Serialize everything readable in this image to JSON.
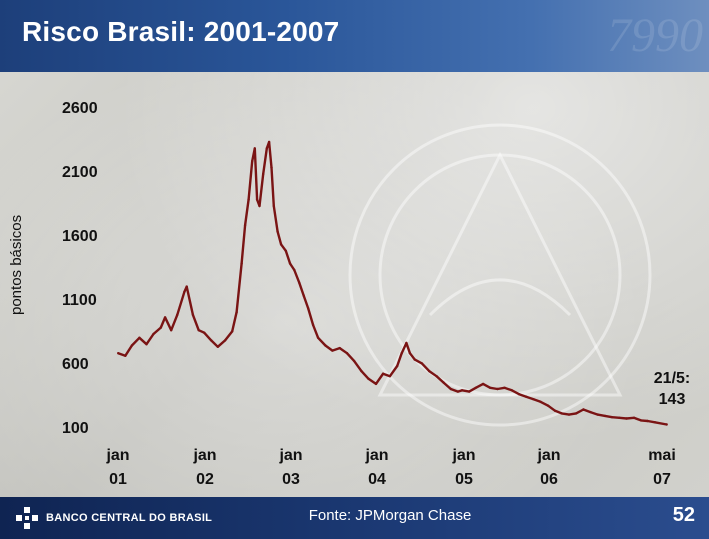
{
  "title": "Risco Brasil: 2001-2007",
  "footer": {
    "brand": "BANCO CENTRAL DO BRASIL",
    "source": "Fonte: JPMorgan Chase",
    "page": "52"
  },
  "colors": {
    "series": "#7a1414",
    "header": "#2a5699",
    "footer": "#1c3a75"
  },
  "chart_data": {
    "type": "line",
    "title": "Risco Brasil: 2001-2007",
    "ylabel": "pontos básicos",
    "yticks": [
      "2600",
      "2100",
      "1600",
      "1100",
      "600",
      "100"
    ],
    "ylim": [
      100,
      2600
    ],
    "xtick_labels": [
      [
        "jan",
        "01"
      ],
      [
        "jan",
        "02"
      ],
      [
        "jan",
        "03"
      ],
      [
        "jan",
        "04"
      ],
      [
        "jan",
        "05"
      ],
      [
        "jan",
        "06"
      ],
      [
        "mai",
        "07"
      ]
    ],
    "xtick_dates": [
      "2001-01",
      "2002-01",
      "2003-01",
      "2004-01",
      "2005-01",
      "2006-01",
      "2007-05"
    ],
    "annotation": [
      "21/5:",
      "143"
    ],
    "grid": false,
    "legend": "none",
    "series": [
      {
        "points": [
          [
            "2001-01-02",
            700
          ],
          [
            "2001-02-01",
            680
          ],
          [
            "2001-03-01",
            760
          ],
          [
            "2001-04-02",
            820
          ],
          [
            "2001-05-02",
            770
          ],
          [
            "2001-06-01",
            850
          ],
          [
            "2001-07-02",
            900
          ],
          [
            "2001-07-20",
            980
          ],
          [
            "2001-08-15",
            880
          ],
          [
            "2001-09-10",
            1000
          ],
          [
            "2001-10-10",
            1180
          ],
          [
            "2001-10-20",
            1220
          ],
          [
            "2001-11-15",
            1000
          ],
          [
            "2001-12-10",
            880
          ],
          [
            "2002-01-02",
            860
          ],
          [
            "2002-02-01",
            800
          ],
          [
            "2002-03-01",
            750
          ],
          [
            "2002-04-01",
            800
          ],
          [
            "2002-05-01",
            870
          ],
          [
            "2002-05-20",
            1020
          ],
          [
            "2002-06-10",
            1400
          ],
          [
            "2002-06-25",
            1700
          ],
          [
            "2002-07-10",
            1900
          ],
          [
            "2002-07-25",
            2200
          ],
          [
            "2002-08-05",
            2300
          ],
          [
            "2002-08-15",
            1900
          ],
          [
            "2002-08-25",
            1850
          ],
          [
            "2002-09-10",
            2100
          ],
          [
            "2002-09-25",
            2300
          ],
          [
            "2002-10-05",
            2350
          ],
          [
            "2002-10-15",
            2150
          ],
          [
            "2002-10-25",
            1850
          ],
          [
            "2002-11-10",
            1650
          ],
          [
            "2002-11-25",
            1550
          ],
          [
            "2002-12-15",
            1500
          ],
          [
            "2003-01-02",
            1400
          ],
          [
            "2003-01-20",
            1350
          ],
          [
            "2003-02-10",
            1250
          ],
          [
            "2003-03-01",
            1150
          ],
          [
            "2003-03-20",
            1050
          ],
          [
            "2003-04-10",
            920
          ],
          [
            "2003-05-01",
            820
          ],
          [
            "2003-06-01",
            760
          ],
          [
            "2003-07-01",
            720
          ],
          [
            "2003-08-01",
            740
          ],
          [
            "2003-09-01",
            700
          ],
          [
            "2003-10-01",
            640
          ],
          [
            "2003-11-01",
            560
          ],
          [
            "2003-12-01",
            500
          ],
          [
            "2004-01-02",
            460
          ],
          [
            "2004-02-01",
            540
          ],
          [
            "2004-03-01",
            520
          ],
          [
            "2004-04-01",
            600
          ],
          [
            "2004-04-20",
            700
          ],
          [
            "2004-05-10",
            780
          ],
          [
            "2004-05-25",
            700
          ],
          [
            "2004-06-15",
            650
          ],
          [
            "2004-07-15",
            620
          ],
          [
            "2004-08-15",
            560
          ],
          [
            "2004-09-15",
            520
          ],
          [
            "2004-10-15",
            470
          ],
          [
            "2004-11-15",
            420
          ],
          [
            "2004-12-15",
            400
          ],
          [
            "2005-01-02",
            410
          ],
          [
            "2005-02-01",
            400
          ],
          [
            "2005-03-01",
            430
          ],
          [
            "2005-04-01",
            460
          ],
          [
            "2005-05-01",
            430
          ],
          [
            "2005-06-01",
            420
          ],
          [
            "2005-07-01",
            430
          ],
          [
            "2005-08-01",
            410
          ],
          [
            "2005-09-01",
            380
          ],
          [
            "2005-10-01",
            360
          ],
          [
            "2005-11-01",
            340
          ],
          [
            "2005-12-01",
            320
          ],
          [
            "2006-01-02",
            290
          ],
          [
            "2006-02-01",
            250
          ],
          [
            "2006-03-01",
            230
          ],
          [
            "2006-04-01",
            220
          ],
          [
            "2006-05-01",
            230
          ],
          [
            "2006-06-01",
            260
          ],
          [
            "2006-07-01",
            240
          ],
          [
            "2006-08-01",
            220
          ],
          [
            "2006-09-01",
            210
          ],
          [
            "2006-10-01",
            200
          ],
          [
            "2006-11-01",
            195
          ],
          [
            "2006-12-01",
            190
          ],
          [
            "2007-01-02",
            195
          ],
          [
            "2007-02-01",
            175
          ],
          [
            "2007-03-01",
            170
          ],
          [
            "2007-04-01",
            160
          ],
          [
            "2007-05-21",
            143
          ]
        ]
      }
    ]
  }
}
